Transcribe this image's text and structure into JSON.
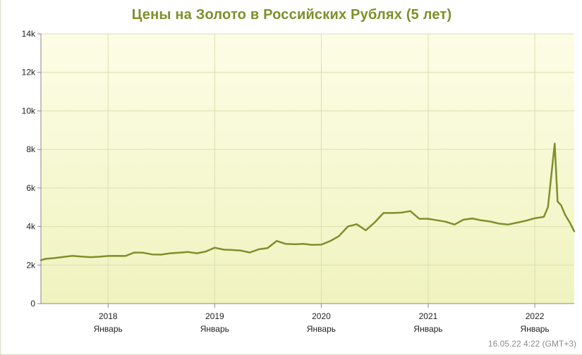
{
  "chart_data": {
    "type": "line",
    "title": "Цены на Золото в Российских Рублях (5 лет)",
    "xlabel": "",
    "ylabel": "",
    "xlim": [
      "2017-05-16",
      "2022-05-16"
    ],
    "ylim": [
      0,
      14000
    ],
    "y_ticks": [
      0,
      2000,
      4000,
      6000,
      8000,
      10000,
      12000,
      14000
    ],
    "y_tick_labels": [
      "0",
      "2k",
      "4k",
      "6k",
      "8k",
      "10k",
      "12k",
      "14k"
    ],
    "x_ticks": [
      {
        "date": "2018-01-01",
        "year": "2018",
        "month": "Январь"
      },
      {
        "date": "2019-01-01",
        "year": "2019",
        "month": "Январь"
      },
      {
        "date": "2020-01-01",
        "year": "2020",
        "month": "Январь"
      },
      {
        "date": "2021-01-01",
        "year": "2021",
        "month": "Январь"
      },
      {
        "date": "2022-01-01",
        "year": "2022",
        "month": "Январь"
      }
    ],
    "grid": true,
    "line_color": "#7e8f2b",
    "background_top": "#fdfde6",
    "background_bottom": "#f0f3bf",
    "grid_color": "#d9dfb3",
    "series": [
      {
        "x": [
          "2017-05-16",
          "2017-06-01",
          "2017-07-01",
          "2017-08-01",
          "2017-09-01",
          "2017-10-01",
          "2017-11-01",
          "2017-12-01",
          "2018-01-01",
          "2018-02-01",
          "2018-03-01",
          "2018-04-01",
          "2018-05-01",
          "2018-06-01",
          "2018-07-01",
          "2018-08-01",
          "2018-09-01",
          "2018-10-01",
          "2018-11-01",
          "2018-12-01",
          "2019-01-01",
          "2019-02-01",
          "2019-03-01",
          "2019-04-01",
          "2019-05-01",
          "2019-06-01",
          "2019-07-01",
          "2019-08-01",
          "2019-09-01",
          "2019-10-01",
          "2019-11-01",
          "2019-12-01",
          "2020-01-01",
          "2020-02-01",
          "2020-03-01",
          "2020-04-01",
          "2020-05-01",
          "2020-06-01",
          "2020-07-01",
          "2020-08-01",
          "2020-09-01",
          "2020-10-01",
          "2020-11-01",
          "2020-12-01",
          "2021-01-01",
          "2021-02-01",
          "2021-03-01",
          "2021-04-01",
          "2021-05-01",
          "2021-06-01",
          "2021-07-01",
          "2021-08-01",
          "2021-09-01",
          "2021-10-01",
          "2021-11-01",
          "2021-12-01",
          "2022-01-01",
          "2022-02-01",
          "2022-02-15",
          "2022-03-01",
          "2022-03-10",
          "2022-03-20",
          "2022-04-01",
          "2022-04-15",
          "2022-05-01",
          "2022-05-16"
        ],
        "y": [
          2250,
          2320,
          2360,
          2420,
          2480,
          2440,
          2410,
          2430,
          2470,
          2480,
          2470,
          2650,
          2640,
          2550,
          2540,
          2610,
          2640,
          2680,
          2610,
          2700,
          2900,
          2800,
          2780,
          2750,
          2650,
          2820,
          2880,
          3250,
          3100,
          3080,
          3100,
          3050,
          3060,
          3250,
          3500,
          4000,
          4120,
          3800,
          4200,
          4700,
          4700,
          4720,
          4800,
          4400,
          4400,
          4320,
          4250,
          4100,
          4350,
          4420,
          4320,
          4260,
          4150,
          4100,
          4200,
          4300,
          4430,
          4500,
          5000,
          7000,
          8300,
          5300,
          5100,
          4600,
          4200,
          3750
        ]
      }
    ],
    "footer_timestamp": "16.05.22 4:22 (GMT+3)"
  }
}
